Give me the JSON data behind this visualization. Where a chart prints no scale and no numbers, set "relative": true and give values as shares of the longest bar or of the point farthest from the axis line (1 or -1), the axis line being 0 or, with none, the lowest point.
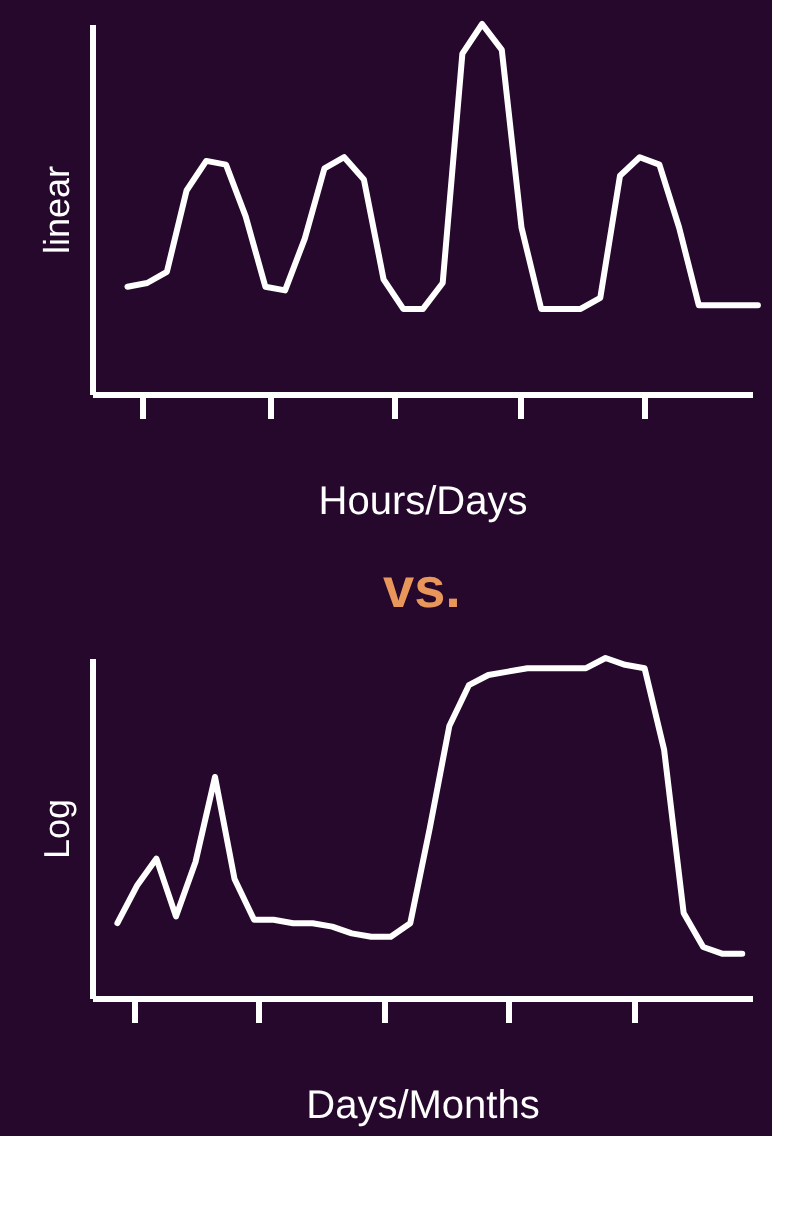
{
  "chart_data": [
    {
      "type": "line",
      "relative": true,
      "xlabel": "Hours/Days",
      "ylabel": "linear",
      "color": "#ffffff",
      "grid": false,
      "tick_labels": false,
      "categories": [
        null,
        null,
        null,
        null,
        null,
        null,
        null,
        null,
        null,
        null,
        null,
        null,
        null,
        null,
        null,
        null,
        null,
        null,
        null,
        null,
        null,
        null,
        null,
        null,
        null,
        null,
        null,
        null,
        null,
        null,
        null,
        null,
        null
      ],
      "values": [
        0.29,
        0.3,
        0.33,
        0.55,
        0.63,
        0.62,
        0.48,
        0.29,
        0.28,
        0.42,
        0.61,
        0.64,
        0.58,
        0.31,
        0.23,
        0.23,
        0.3,
        0.92,
        1.0,
        0.93,
        0.45,
        0.23,
        0.23,
        0.23,
        0.26,
        0.59,
        0.64,
        0.62,
        0.45,
        0.24,
        0.24,
        0.24,
        0.24
      ]
    },
    {
      "type": "line",
      "relative": true,
      "title": "vs.",
      "xlabel": "Days/Months",
      "ylabel": "Log",
      "color": "#ffffff",
      "grid": false,
      "tick_labels": false,
      "categories": [
        null,
        null,
        null,
        null,
        null,
        null,
        null,
        null,
        null,
        null,
        null,
        null,
        null,
        null,
        null,
        null,
        null,
        null,
        null,
        null,
        null,
        null,
        null,
        null,
        null,
        null,
        null,
        null,
        null,
        null,
        null,
        null,
        null
      ],
      "values": [
        0.22,
        0.33,
        0.41,
        0.24,
        0.4,
        0.65,
        0.35,
        0.23,
        0.23,
        0.22,
        0.22,
        0.21,
        0.19,
        0.18,
        0.18,
        0.22,
        0.5,
        0.8,
        0.92,
        0.95,
        0.96,
        0.97,
        0.97,
        0.97,
        0.97,
        1.0,
        0.98,
        0.97,
        0.73,
        0.25,
        0.15,
        0.13,
        0.13
      ]
    }
  ]
}
